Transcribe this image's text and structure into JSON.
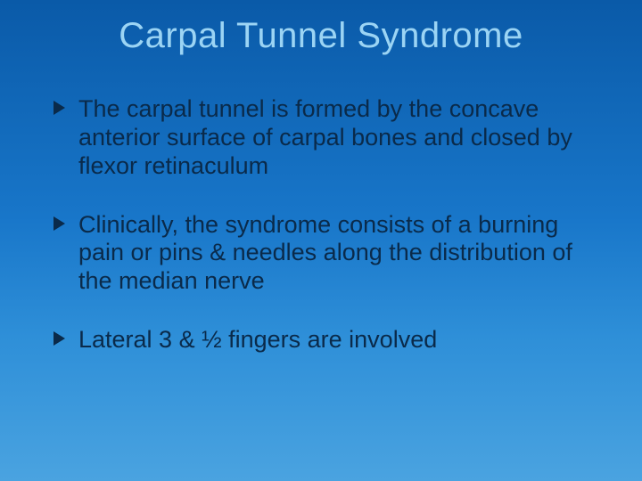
{
  "title": {
    "text": "Carpal Tunnel Syndrome",
    "color": "#9bd4f4",
    "fontsize": 40
  },
  "body": {
    "text_color": "#0a2a4a",
    "fontsize": 27,
    "bullet_arrow_color": "#0a2a4a",
    "items": [
      "The carpal tunnel is formed by the concave anterior surface of carpal bones and closed by flexor retinaculum",
      "Clinically, the syndrome consists of a burning pain or pins & needles along the distribution of the median nerve",
      "Lateral 3 & ½ fingers are involved"
    ]
  },
  "background": {
    "gradient_top": "#0a5aa8",
    "gradient_mid": "#1876c9",
    "gradient_low": "#2e8fd8",
    "gradient_bottom": "#4aa3e0"
  }
}
